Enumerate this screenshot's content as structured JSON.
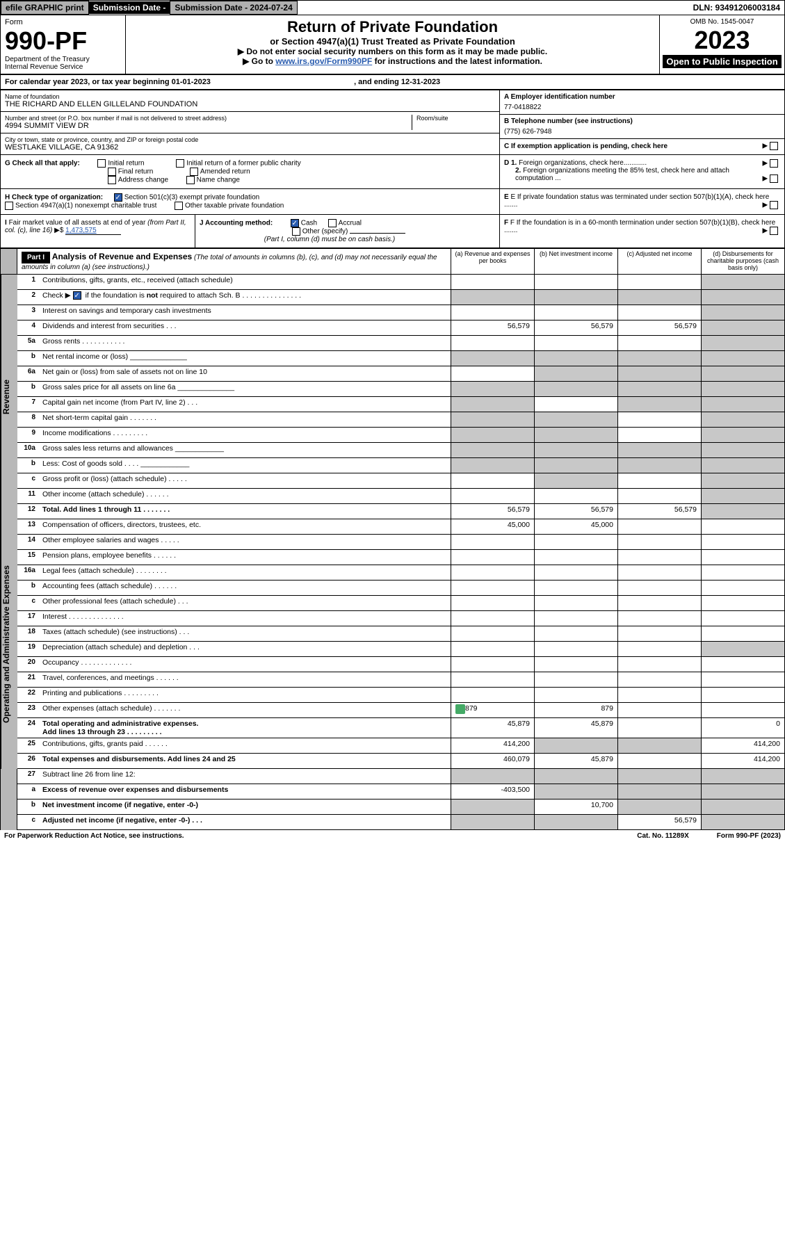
{
  "header": {
    "efile_btn": "efile GRAPHIC print",
    "submission_label": "Submission Date - 2024-07-24",
    "dln": "DLN: 93491206003184"
  },
  "form_box": {
    "form_label": "Form",
    "form_number": "990-PF",
    "dept1": "Department of the Treasury",
    "dept2": "Internal Revenue Service",
    "title": "Return of Private Foundation",
    "subtitle": "or Section 4947(a)(1) Trust Treated as Private Foundation",
    "instr1": "▶ Do not enter social security numbers on this form as it may be made public.",
    "instr2_pre": "▶ Go to ",
    "instr2_link": "www.irs.gov/Form990PF",
    "instr2_post": " for instructions and the latest information.",
    "omb": "OMB No. 1545-0047",
    "year": "2023",
    "open_pub": "Open to Public Inspection"
  },
  "cal_year": {
    "prefix": "For calendar year 2023, or tax year beginning ",
    "begin": "01-01-2023",
    "mid": " , and ending ",
    "end": "12-31-2023"
  },
  "id": {
    "name_lbl": "Name of foundation",
    "name_val": "THE RICHARD AND ELLEN GILLELAND FOUNDATION",
    "addr_lbl": "Number and street (or P.O. box number if mail is not delivered to street address)",
    "addr_val": "4994 SUMMIT VIEW DR",
    "room_lbl": "Room/suite",
    "city_lbl": "City or town, state or province, country, and ZIP or foreign postal code",
    "city_val": "WESTLAKE VILLAGE, CA  91362",
    "a_lbl": "A Employer identification number",
    "a_val": "77-0418822",
    "b_lbl": "B Telephone number (see instructions)",
    "b_val": "(775) 626-7948",
    "c_lbl": "C If exemption application is pending, check here",
    "d1_lbl": "D 1. Foreign organizations, check here............",
    "d2_lbl": "2. Foreign organizations meeting the 85% test, check here and attach computation ...",
    "e_lbl": "E  If private foundation status was terminated under section 507(b)(1)(A), check here .......",
    "f_lbl": "F  If the foundation is in a 60-month termination under section 507(b)(1)(B), check here ......."
  },
  "g": {
    "label": "G Check all that apply:",
    "opts": [
      "Initial return",
      "Final return",
      "Address change",
      "Initial return of a former public charity",
      "Amended return",
      "Name change"
    ]
  },
  "h": {
    "label": "H Check type of organization:",
    "opt1": "Section 501(c)(3) exempt private foundation",
    "opt2": "Section 4947(a)(1) nonexempt charitable trust",
    "opt3": "Other taxable private foundation"
  },
  "i": {
    "label": "I Fair market value of all assets at end of year (from Part II, col. (c), line 16)",
    "val_prefix": "▶$ ",
    "val": "1,473,575"
  },
  "j": {
    "label": "J Accounting method:",
    "cash": "Cash",
    "accrual": "Accrual",
    "other": "Other (specify)",
    "note": "(Part I, column (d) must be on cash basis.)"
  },
  "part1": {
    "hdr": "Part I",
    "title": "Analysis of Revenue and Expenses",
    "title_note": " (The total of amounts in columns (b), (c), and (d) may not necessarily equal the amounts in column (a) (see instructions).)",
    "col_a": "(a) Revenue and expenses per books",
    "col_b": "(b) Net investment income",
    "col_c": "(c) Adjusted net income",
    "col_d": "(d) Disbursements for charitable purposes (cash basis only)"
  },
  "sections": {
    "revenue": "Revenue",
    "opex": "Operating and Administrative Expenses"
  },
  "lines": [
    {
      "sec": "rev",
      "no": "1",
      "text": "Contributions, gifts, grants, etc., received (attach schedule)",
      "a": "",
      "b": "",
      "c": "",
      "d": "",
      "grey_d": true
    },
    {
      "sec": "rev",
      "no": "2",
      "text": "Check ▶ ☑ if the foundation is not required to attach Sch. B   .   .   .   .   .   .   .   .   .   .   .   .   .   .   .",
      "a": "",
      "b": "",
      "c": "",
      "d": "",
      "grey_all": true,
      "has_check": true
    },
    {
      "sec": "rev",
      "no": "3",
      "text": "Interest on savings and temporary cash investments",
      "a": "",
      "b": "",
      "c": "",
      "d": "",
      "grey_d": true
    },
    {
      "sec": "rev",
      "no": "4",
      "text": "Dividends and interest from securities   .   .   .",
      "a": "56,579",
      "b": "56,579",
      "c": "56,579",
      "d": "",
      "grey_d": true
    },
    {
      "sec": "rev",
      "no": "5a",
      "text": "Gross rents   .   .   .   .   .   .   .   .   .   .   .",
      "a": "",
      "b": "",
      "c": "",
      "d": "",
      "grey_d": true
    },
    {
      "sec": "rev",
      "no": "b",
      "text": "Net rental income or (loss)   ______________",
      "a": "",
      "b": "",
      "c": "",
      "d": "",
      "grey_all": true
    },
    {
      "sec": "rev",
      "no": "6a",
      "text": "Net gain or (loss) from sale of assets not on line 10",
      "a": "",
      "b": "",
      "c": "",
      "d": "",
      "grey_bcd": true
    },
    {
      "sec": "rev",
      "no": "b",
      "text": "Gross sales price for all assets on line 6a ______________",
      "a": "",
      "b": "",
      "c": "",
      "d": "",
      "grey_all": true
    },
    {
      "sec": "rev",
      "no": "7",
      "text": "Capital gain net income (from Part IV, line 2)   .   .   .",
      "a": "",
      "b": "",
      "c": "",
      "d": "",
      "grey_a": true,
      "grey_cd": true
    },
    {
      "sec": "rev",
      "no": "8",
      "text": "Net short-term capital gain   .   .   .   .   .   .   .",
      "a": "",
      "b": "",
      "c": "",
      "d": "",
      "grey_ab": true,
      "grey_d": true
    },
    {
      "sec": "rev",
      "no": "9",
      "text": "Income modifications .   .   .   .   .   .   .   .   .",
      "a": "",
      "b": "",
      "c": "",
      "d": "",
      "grey_ab": true,
      "grey_d": true
    },
    {
      "sec": "rev",
      "no": "10a",
      "text": "Gross sales less returns and allowances    ____________",
      "a": "",
      "b": "",
      "c": "",
      "d": "",
      "grey_all": true
    },
    {
      "sec": "rev",
      "no": "b",
      "text": "Less: Cost of goods sold   .   .   .   .   ____________",
      "a": "",
      "b": "",
      "c": "",
      "d": "",
      "grey_all": true
    },
    {
      "sec": "rev",
      "no": "c",
      "text": "Gross profit or (loss) (attach schedule)    .   .   .   .   .",
      "a": "",
      "b": "",
      "c": "",
      "d": "",
      "grey_b": true,
      "grey_d": true
    },
    {
      "sec": "rev",
      "no": "11",
      "text": "Other income (attach schedule)   .   .   .   .   .   .",
      "a": "",
      "b": "",
      "c": "",
      "d": "",
      "grey_d": true
    },
    {
      "sec": "rev",
      "no": "12",
      "text": "Total. Add lines 1 through 11   .   .   .   .   .   .   .",
      "a": "56,579",
      "b": "56,579",
      "c": "56,579",
      "d": "",
      "bold": true,
      "grey_d": true
    },
    {
      "sec": "op",
      "no": "13",
      "text": "Compensation of officers, directors, trustees, etc.",
      "a": "45,000",
      "b": "45,000",
      "c": "",
      "d": ""
    },
    {
      "sec": "op",
      "no": "14",
      "text": "Other employee salaries and wages   .   .   .   .   .",
      "a": "",
      "b": "",
      "c": "",
      "d": ""
    },
    {
      "sec": "op",
      "no": "15",
      "text": "Pension plans, employee benefits .   .   .   .   .   .",
      "a": "",
      "b": "",
      "c": "",
      "d": ""
    },
    {
      "sec": "op",
      "no": "16a",
      "text": "Legal fees (attach schedule) .   .   .   .   .   .   .   .",
      "a": "",
      "b": "",
      "c": "",
      "d": ""
    },
    {
      "sec": "op",
      "no": "b",
      "text": "Accounting fees (attach schedule)  .   .   .   .   .   .",
      "a": "",
      "b": "",
      "c": "",
      "d": ""
    },
    {
      "sec": "op",
      "no": "c",
      "text": "Other professional fees (attach schedule)   .   .   .",
      "a": "",
      "b": "",
      "c": "",
      "d": ""
    },
    {
      "sec": "op",
      "no": "17",
      "text": "Interest .   .   .   .   .   .   .   .   .   .   .   .   .   .",
      "a": "",
      "b": "",
      "c": "",
      "d": ""
    },
    {
      "sec": "op",
      "no": "18",
      "text": "Taxes (attach schedule) (see instructions)   .   .   .",
      "a": "",
      "b": "",
      "c": "",
      "d": ""
    },
    {
      "sec": "op",
      "no": "19",
      "text": "Depreciation (attach schedule) and depletion   .   .   .",
      "a": "",
      "b": "",
      "c": "",
      "d": "",
      "grey_d": true
    },
    {
      "sec": "op",
      "no": "20",
      "text": "Occupancy .   .   .   .   .   .   .   .   .   .   .   .   .",
      "a": "",
      "b": "",
      "c": "",
      "d": ""
    },
    {
      "sec": "op",
      "no": "21",
      "text": "Travel, conferences, and meetings .   .   .   .   .   .",
      "a": "",
      "b": "",
      "c": "",
      "d": ""
    },
    {
      "sec": "op",
      "no": "22",
      "text": "Printing and publications .   .   .   .   .   .   .   .   .",
      "a": "",
      "b": "",
      "c": "",
      "d": ""
    },
    {
      "sec": "op",
      "no": "23",
      "text": "Other expenses (attach schedule) .   .   .   .   .   .   .",
      "a": "879",
      "b": "879",
      "c": "",
      "d": "",
      "has_icon": true
    },
    {
      "sec": "op",
      "no": "24",
      "text": "Total operating and administrative expenses. Add lines 13 through 23   .   .   .   .   .   .   .   .   .",
      "a": "45,879",
      "b": "45,879",
      "c": "",
      "d": "0",
      "bold": true
    },
    {
      "sec": "op",
      "no": "25",
      "text": "Contributions, gifts, grants paid   .   .   .   .   .   .",
      "a": "414,200",
      "b": "",
      "c": "",
      "d": "414,200",
      "grey_bc": true
    },
    {
      "sec": "op",
      "no": "26",
      "text": "Total expenses and disbursements. Add lines 24 and 25",
      "a": "460,079",
      "b": "45,879",
      "c": "",
      "d": "414,200",
      "bold": true
    },
    {
      "sec": "none",
      "no": "27",
      "text": "Subtract line 26 from line 12:",
      "a": "",
      "b": "",
      "c": "",
      "d": "",
      "grey_all": true
    },
    {
      "sec": "none",
      "no": "a",
      "text": "Excess of revenue over expenses and disbursements",
      "a": "-403,500",
      "b": "",
      "c": "",
      "d": "",
      "bold": true,
      "grey_bcd": true
    },
    {
      "sec": "none",
      "no": "b",
      "text": "Net investment income (if negative, enter -0-)",
      "a": "",
      "b": "10,700",
      "c": "",
      "d": "",
      "bold": true,
      "grey_a": true,
      "grey_cd": true
    },
    {
      "sec": "none",
      "no": "c",
      "text": "Adjusted net income (if negative, enter -0-)   .   .   .",
      "a": "",
      "b": "",
      "c": "56,579",
      "d": "",
      "bold": true,
      "grey_ab": true,
      "grey_d": true
    }
  ],
  "footer": {
    "left": "For Paperwork Reduction Act Notice, see instructions.",
    "mid": "Cat. No. 11289X",
    "right": "Form 990-PF (2023)"
  }
}
